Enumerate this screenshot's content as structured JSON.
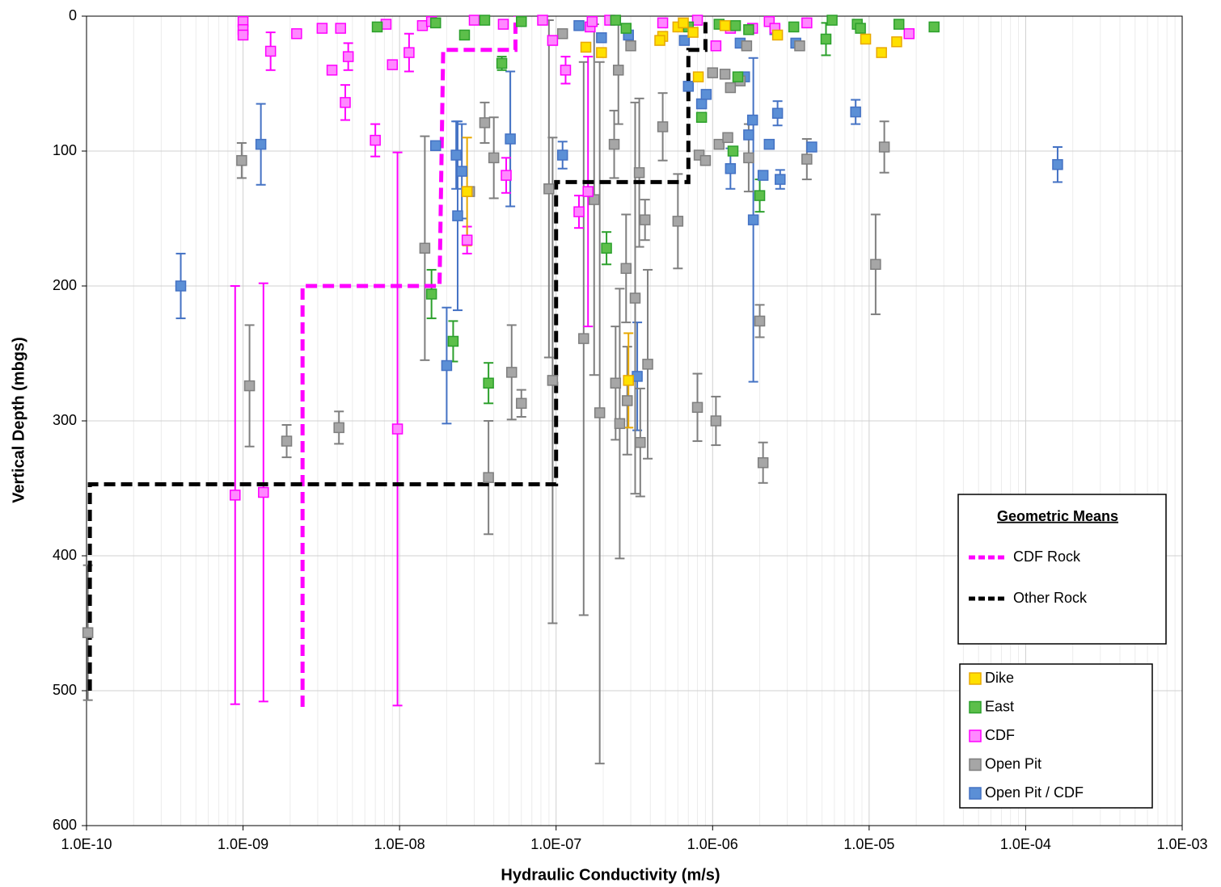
{
  "chart_data": {
    "type": "scatter",
    "x_label": "Hydraulic Conductivity (m/s)",
    "y_label": "Vertical Depth (mbgs)",
    "xlim": [
      1e-10,
      0.001
    ],
    "ylim": [
      0,
      600
    ],
    "x_log": true,
    "y_inverted": true,
    "grid": true,
    "minor_grid": true,
    "xticks": [
      {
        "value": 1e-10,
        "label": "1.0E-10"
      },
      {
        "value": 1e-09,
        "label": "1.0E-09"
      },
      {
        "value": 1e-08,
        "label": "1.0E-08"
      },
      {
        "value": 1e-07,
        "label": "1.0E-07"
      },
      {
        "value": 1e-06,
        "label": "1.0E-06"
      },
      {
        "value": 1e-05,
        "label": "1.0E-05"
      },
      {
        "value": 0.0001,
        "label": "1.0E-04"
      },
      {
        "value": 0.001,
        "label": "1.0E-03"
      }
    ],
    "yticks": [
      0,
      100,
      200,
      300,
      400,
      500,
      600
    ],
    "means_legend_title": "Geometric Means",
    "mean_lines": [
      {
        "name": "CDF Rock",
        "color": "#ff00ff",
        "x": [
          2.4e-09,
          2.4e-09,
          1.8e-08,
          1.9e-08,
          5.5e-08,
          5.5e-08
        ],
        "values": [
          512,
          200,
          200,
          25,
          25,
          0
        ]
      },
      {
        "name": "Other Rock",
        "color": "#000000",
        "x": [
          1.05e-10,
          1.05e-10,
          1e-07,
          1e-07,
          7e-07,
          7e-07,
          9e-07,
          9e-07
        ],
        "values": [
          500,
          347,
          347,
          123,
          123,
          25,
          25,
          0
        ]
      }
    ],
    "series": [
      {
        "name": "Dike",
        "color": "#ffe000",
        "edge": "#e8a800",
        "x": [
          6e-07,
          6.5e-07,
          4.8e-07,
          4.6e-07,
          9.5e-06,
          1.2e-05,
          1.5e-05,
          2.6e-06,
          1.55e-07,
          1.95e-07,
          8.1e-07,
          2.9e-07,
          2.7e-08,
          1.2e-06,
          7.5e-07
        ],
        "values": [
          8,
          5,
          15,
          18,
          17,
          27,
          19,
          14,
          23,
          27,
          45,
          270,
          130,
          7,
          12
        ],
        "errors": [
          null,
          null,
          null,
          null,
          null,
          null,
          null,
          null,
          null,
          null,
          null,
          35,
          40,
          null,
          null
        ]
      },
      {
        "name": "East",
        "color": "#5cbf4a",
        "edge": "#2ca02c",
        "x": [
          7.2e-09,
          1.7e-08,
          2.6e-08,
          4.5e-08,
          6e-08,
          3.5e-08,
          2.4e-07,
          2.8e-07,
          7e-07,
          1.1e-06,
          1.4e-06,
          1.7e-06,
          3.3e-06,
          5.3e-06,
          5.8e-06,
          8.4e-06,
          8.8e-06,
          1.55e-05,
          2.6e-05,
          1.45e-06,
          1.35e-06,
          2e-06,
          2.1e-07,
          1.6e-08,
          2.2e-08,
          3.7e-08,
          8.5e-07
        ],
        "values": [
          8,
          5,
          14,
          35,
          4,
          3,
          3,
          9,
          8,
          6,
          7,
          10,
          8,
          17,
          3,
          6,
          9,
          6,
          8,
          45,
          100,
          133,
          172,
          206,
          241,
          272,
          75
        ],
        "errors": [
          null,
          null,
          null,
          5,
          null,
          null,
          null,
          null,
          null,
          null,
          null,
          null,
          null,
          12,
          null,
          null,
          null,
          null,
          null,
          null,
          null,
          12,
          12,
          18,
          15,
          15,
          null
        ]
      },
      {
        "name": "CDF",
        "color": "#ff88ff",
        "edge": "#ff00ff",
        "x": [
          1e-09,
          1e-09,
          1e-09,
          1.5e-09,
          2.2e-09,
          3.2e-09,
          3.7e-09,
          4.2e-09,
          4.5e-09,
          4.7e-09,
          7e-09,
          8.2e-09,
          9e-09,
          1.15e-08,
          1.4e-08,
          1.6e-08,
          2.7e-08,
          3e-08,
          4.6e-08,
          4.8e-08,
          8.2e-08,
          9.5e-08,
          1.15e-07,
          1.4e-07,
          1.65e-07,
          1.7e-07,
          2.2e-07,
          4.8e-07,
          8e-07,
          1.05e-06,
          1.3e-06,
          1.8e-06,
          2.3e-06,
          2.5e-06,
          4e-06,
          1.8e-05,
          8.9e-10,
          1.35e-09,
          9.7e-09,
          1.6e-07
        ],
        "values": [
          4,
          10,
          14,
          26,
          13,
          9,
          40,
          9,
          64,
          30,
          92,
          6,
          36,
          27,
          7,
          4,
          166,
          3,
          6,
          118,
          3,
          18,
          40,
          145,
          8,
          4,
          3,
          5,
          3,
          22,
          9,
          9,
          4,
          9,
          5,
          13,
          355,
          353,
          306,
          130
        ],
        "errors": [
          null,
          null,
          null,
          14,
          null,
          null,
          null,
          null,
          13,
          10,
          12,
          null,
          null,
          14,
          null,
          null,
          10,
          null,
          null,
          13,
          null,
          null,
          10,
          12,
          null,
          null,
          null,
          null,
          null,
          null,
          null,
          null,
          null,
          null,
          null,
          null,
          155,
          155,
          205,
          100
        ]
      },
      {
        "name": "Open Pit",
        "color": "#a6a6a6",
        "edge": "#7f7f7f",
        "x": [
          1.02e-10,
          9.8e-10,
          1.1e-09,
          1.9e-09,
          4.1e-09,
          3.5e-08,
          3.7e-08,
          4e-08,
          1.45e-08,
          2.8e-08,
          5.2e-08,
          6e-08,
          9e-08,
          9.5e-08,
          1.1e-07,
          1.5e-07,
          1.75e-07,
          1.9e-07,
          2.35e-07,
          2.5e-07,
          2.4e-07,
          2.55e-07,
          2.8e-07,
          2.85e-07,
          3e-07,
          3.2e-07,
          3.4e-07,
          3.45e-07,
          3.7e-07,
          3.85e-07,
          4.8e-07,
          6e-07,
          8e-07,
          8.2e-07,
          9e-07,
          1e-06,
          1.05e-06,
          1.1e-06,
          1.2e-06,
          1.3e-06,
          1.5e-06,
          1.65e-06,
          1.7e-06,
          2e-06,
          2.1e-06,
          3.6e-06,
          4e-06,
          1.1e-05,
          1.25e-05,
          1.25e-06
        ],
        "values": [
          457,
          107,
          274,
          315,
          305,
          79,
          342,
          105,
          172,
          130,
          264,
          287,
          128,
          270,
          13,
          239,
          136,
          294,
          95,
          40,
          272,
          302,
          187,
          285,
          22,
          209,
          116,
          316,
          151,
          258,
          82,
          152,
          290,
          103,
          107,
          42,
          300,
          95,
          43,
          53,
          48,
          22,
          105,
          226,
          331,
          22,
          106,
          184,
          97,
          90
        ],
        "errors": [
          50,
          13,
          45,
          12,
          12,
          15,
          42,
          30,
          83,
          null,
          35,
          10,
          125,
          180,
          null,
          205,
          130,
          260,
          25,
          40,
          42,
          100,
          40,
          40,
          null,
          145,
          55,
          40,
          15,
          70,
          25,
          35,
          25,
          null,
          null,
          null,
          18,
          null,
          null,
          null,
          null,
          null,
          25,
          12,
          15,
          null,
          15,
          37,
          19,
          null
        ]
      },
      {
        "name": "Open Pit / CDF",
        "color": "#5b8fd6",
        "edge": "#4472c4",
        "x": [
          4e-10,
          1.3e-09,
          1.7e-08,
          2e-08,
          2.3e-08,
          2.35e-08,
          2.5e-08,
          5.1e-08,
          1.1e-07,
          1.4e-07,
          1.95e-07,
          2.9e-07,
          3.3e-07,
          6.6e-07,
          7e-07,
          8.5e-07,
          9.1e-07,
          1.3e-06,
          1.5e-06,
          1.6e-06,
          1.7e-06,
          1.8e-06,
          1.82e-06,
          2.1e-06,
          2.3e-06,
          2.5e-06,
          2.6e-06,
          2.7e-06,
          3.4e-06,
          4.3e-06,
          8.2e-06,
          0.00016
        ],
        "values": [
          200,
          95,
          96,
          259,
          103,
          148,
          115,
          91,
          103,
          7,
          16,
          14,
          267,
          18,
          52,
          65,
          58,
          113,
          20,
          45,
          88,
          77,
          151,
          118,
          95,
          10,
          72,
          121,
          20,
          97,
          71,
          110
        ],
        "errors": [
          24,
          30,
          null,
          43,
          25,
          70,
          35,
          50,
          10,
          null,
          null,
          null,
          40,
          null,
          null,
          null,
          null,
          15,
          null,
          null,
          null,
          null,
          120,
          null,
          null,
          null,
          9,
          7,
          null,
          null,
          9,
          13
        ]
      }
    ]
  }
}
